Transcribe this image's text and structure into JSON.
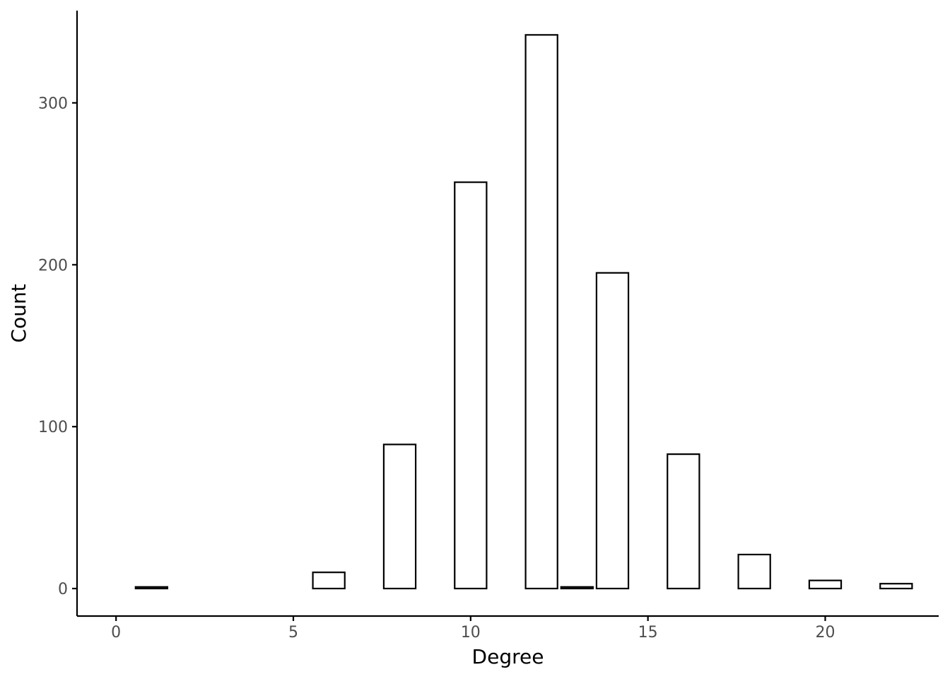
{
  "chart_data": {
    "type": "bar",
    "title": "",
    "xlabel": "Degree",
    "ylabel": "Count",
    "bin_width": 0.9,
    "x": [
      1,
      6,
      8,
      10,
      12,
      13,
      14,
      16,
      18,
      20,
      22
    ],
    "values": [
      1,
      10,
      89,
      251,
      342,
      1,
      195,
      83,
      21,
      5,
      3
    ],
    "xlim": [
      -1.1,
      23.2
    ],
    "ylim": [
      -17,
      357
    ],
    "xticks": [
      0,
      5,
      10,
      15,
      20
    ],
    "yticks": [
      0,
      100,
      200,
      300
    ],
    "grid": false,
    "bar_fill": "#ffffff",
    "bar_stroke": "#000000"
  }
}
